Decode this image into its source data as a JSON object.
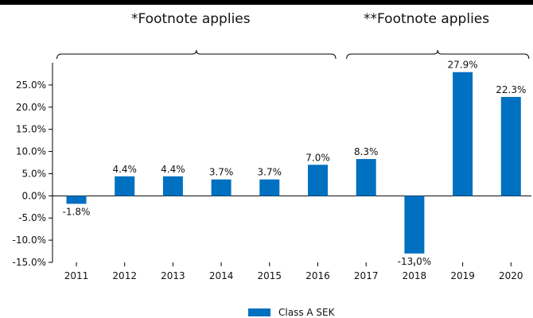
{
  "footnotes": {
    "first": "*Footnote applies",
    "second": "**Footnote applies"
  },
  "colors": {
    "bar": "#0070c0",
    "axis": "#000000"
  },
  "chart_data": {
    "type": "bar",
    "categories": [
      "2011",
      "2012",
      "2013",
      "2014",
      "2015",
      "2016",
      "2017",
      "2018",
      "2019",
      "2020"
    ],
    "series": [
      {
        "name": "Class A SEK",
        "values": [
          -1.8,
          4.4,
          4.4,
          3.7,
          3.7,
          7.0,
          8.3,
          -13.0,
          27.9,
          22.3
        ]
      }
    ],
    "data_labels": [
      "-1.8%",
      "4.4%",
      "4.4%",
      "3.7%",
      "3.7%",
      "7.0%",
      "8.3%",
      "-13.0%",
      "27.9%",
      "22.3%"
    ],
    "y_ticks": [
      -15,
      -10,
      -5,
      0,
      5,
      10,
      15,
      20,
      25
    ],
    "y_tick_labels": [
      "-15.0%",
      "-10.0%",
      "-5.0%",
      "0.0%",
      "5.0%",
      "10.0%",
      "15.0%",
      "20.0%",
      "25.0%"
    ],
    "ylim": [
      -15,
      30
    ],
    "legend_position": "bottom-center",
    "grid": false,
    "brackets": [
      {
        "label": "*Footnote applies",
        "from": "2011",
        "to": "2016"
      },
      {
        "label": "**Footnote applies",
        "from": "2017",
        "to": "2020"
      }
    ]
  }
}
